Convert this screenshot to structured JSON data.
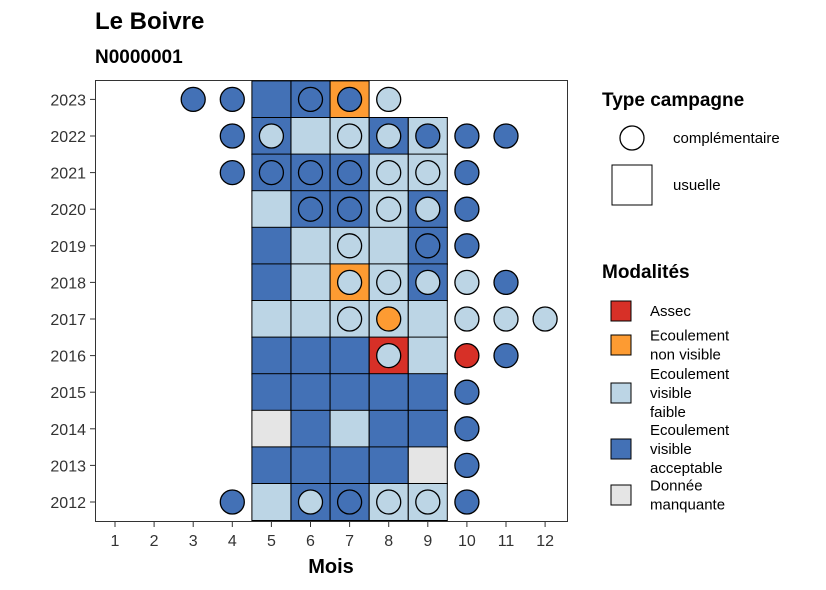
{
  "chart_data": {
    "type": "heatmap",
    "title": "Le Boivre",
    "subtitle": "N0000001",
    "xlabel": "Mois",
    "ylabel": "",
    "x_ticks": [
      "1",
      "2",
      "3",
      "4",
      "5",
      "6",
      "7",
      "8",
      "9",
      "10",
      "11",
      "12"
    ],
    "y_ticks": [
      "2012",
      "2013",
      "2014",
      "2015",
      "2016",
      "2017",
      "2018",
      "2019",
      "2020",
      "2021",
      "2022",
      "2023"
    ],
    "grid": false,
    "legend_position": "right",
    "modalites": [
      {
        "key": "A",
        "label_lines": [
          "Assec"
        ],
        "color": "#d73027"
      },
      {
        "key": "N",
        "label_lines": [
          "Ecoulement",
          "non visible"
        ],
        "color": "#fd9b32"
      },
      {
        "key": "F",
        "label_lines": [
          "Ecoulement",
          "visible",
          "faible"
        ],
        "color": "#bcd5e5"
      },
      {
        "key": "V",
        "label_lines": [
          "Ecoulement",
          "visible",
          "acceptable"
        ],
        "color": "#4371b6"
      },
      {
        "key": "M",
        "label_lines": [
          "Donnée",
          "manquante"
        ],
        "color": "#e5e5e5"
      }
    ],
    "campaign_types": {
      "title": "Type campagne",
      "items": [
        {
          "shape": "circle",
          "label": "complémentaire"
        },
        {
          "shape": "square",
          "label": "usuelle"
        }
      ]
    },
    "usuelle": [
      {
        "year": 2023,
        "month": 5,
        "value": "V"
      },
      {
        "year": 2023,
        "month": 6,
        "value": "V"
      },
      {
        "year": 2023,
        "month": 7,
        "value": "N"
      },
      {
        "year": 2022,
        "month": 5,
        "value": "V"
      },
      {
        "year": 2022,
        "month": 6,
        "value": "F"
      },
      {
        "year": 2022,
        "month": 7,
        "value": "F"
      },
      {
        "year": 2022,
        "month": 8,
        "value": "V"
      },
      {
        "year": 2022,
        "month": 9,
        "value": "F"
      },
      {
        "year": 2021,
        "month": 5,
        "value": "V"
      },
      {
        "year": 2021,
        "month": 6,
        "value": "V"
      },
      {
        "year": 2021,
        "month": 7,
        "value": "V"
      },
      {
        "year": 2021,
        "month": 8,
        "value": "F"
      },
      {
        "year": 2021,
        "month": 9,
        "value": "F"
      },
      {
        "year": 2020,
        "month": 5,
        "value": "F"
      },
      {
        "year": 2020,
        "month": 6,
        "value": "V"
      },
      {
        "year": 2020,
        "month": 7,
        "value": "V"
      },
      {
        "year": 2020,
        "month": 8,
        "value": "F"
      },
      {
        "year": 2020,
        "month": 9,
        "value": "V"
      },
      {
        "year": 2019,
        "month": 5,
        "value": "V"
      },
      {
        "year": 2019,
        "month": 6,
        "value": "F"
      },
      {
        "year": 2019,
        "month": 7,
        "value": "F"
      },
      {
        "year": 2019,
        "month": 8,
        "value": "F"
      },
      {
        "year": 2019,
        "month": 9,
        "value": "V"
      },
      {
        "year": 2018,
        "month": 5,
        "value": "V"
      },
      {
        "year": 2018,
        "month": 6,
        "value": "F"
      },
      {
        "year": 2018,
        "month": 7,
        "value": "N"
      },
      {
        "year": 2018,
        "month": 8,
        "value": "F"
      },
      {
        "year": 2018,
        "month": 9,
        "value": "V"
      },
      {
        "year": 2017,
        "month": 5,
        "value": "F"
      },
      {
        "year": 2017,
        "month": 6,
        "value": "F"
      },
      {
        "year": 2017,
        "month": 7,
        "value": "F"
      },
      {
        "year": 2017,
        "month": 8,
        "value": "F"
      },
      {
        "year": 2017,
        "month": 9,
        "value": "F"
      },
      {
        "year": 2016,
        "month": 5,
        "value": "V"
      },
      {
        "year": 2016,
        "month": 6,
        "value": "V"
      },
      {
        "year": 2016,
        "month": 7,
        "value": "V"
      },
      {
        "year": 2016,
        "month": 8,
        "value": "A"
      },
      {
        "year": 2016,
        "month": 9,
        "value": "F"
      },
      {
        "year": 2015,
        "month": 5,
        "value": "V"
      },
      {
        "year": 2015,
        "month": 6,
        "value": "V"
      },
      {
        "year": 2015,
        "month": 7,
        "value": "V"
      },
      {
        "year": 2015,
        "month": 8,
        "value": "V"
      },
      {
        "year": 2015,
        "month": 9,
        "value": "V"
      },
      {
        "year": 2014,
        "month": 5,
        "value": "M"
      },
      {
        "year": 2014,
        "month": 6,
        "value": "V"
      },
      {
        "year": 2014,
        "month": 7,
        "value": "F"
      },
      {
        "year": 2014,
        "month": 8,
        "value": "V"
      },
      {
        "year": 2014,
        "month": 9,
        "value": "V"
      },
      {
        "year": 2013,
        "month": 5,
        "value": "V"
      },
      {
        "year": 2013,
        "month": 6,
        "value": "V"
      },
      {
        "year": 2013,
        "month": 7,
        "value": "V"
      },
      {
        "year": 2013,
        "month": 8,
        "value": "V"
      },
      {
        "year": 2013,
        "month": 9,
        "value": "M"
      },
      {
        "year": 2012,
        "month": 5,
        "value": "F"
      },
      {
        "year": 2012,
        "month": 6,
        "value": "V"
      },
      {
        "year": 2012,
        "month": 7,
        "value": "V"
      },
      {
        "year": 2012,
        "month": 8,
        "value": "F"
      },
      {
        "year": 2012,
        "month": 9,
        "value": "F"
      }
    ],
    "complementaire": [
      {
        "year": 2023,
        "month": 3,
        "value": "V"
      },
      {
        "year": 2023,
        "month": 4,
        "value": "V"
      },
      {
        "year": 2023,
        "month": 6,
        "value": "V"
      },
      {
        "year": 2023,
        "month": 7,
        "value": "V"
      },
      {
        "year": 2023,
        "month": 8,
        "value": "F"
      },
      {
        "year": 2022,
        "month": 4,
        "value": "V"
      },
      {
        "year": 2022,
        "month": 5,
        "value": "F"
      },
      {
        "year": 2022,
        "month": 7,
        "value": "F"
      },
      {
        "year": 2022,
        "month": 8,
        "value": "F"
      },
      {
        "year": 2022,
        "month": 9,
        "value": "V"
      },
      {
        "year": 2022,
        "month": 10,
        "value": "V"
      },
      {
        "year": 2022,
        "month": 11,
        "value": "V"
      },
      {
        "year": 2021,
        "month": 4,
        "value": "V"
      },
      {
        "year": 2021,
        "month": 5,
        "value": "V"
      },
      {
        "year": 2021,
        "month": 6,
        "value": "V"
      },
      {
        "year": 2021,
        "month": 7,
        "value": "V"
      },
      {
        "year": 2021,
        "month": 8,
        "value": "F"
      },
      {
        "year": 2021,
        "month": 9,
        "value": "F"
      },
      {
        "year": 2021,
        "month": 10,
        "value": "V"
      },
      {
        "year": 2020,
        "month": 6,
        "value": "V"
      },
      {
        "year": 2020,
        "month": 7,
        "value": "V"
      },
      {
        "year": 2020,
        "month": 8,
        "value": "F"
      },
      {
        "year": 2020,
        "month": 9,
        "value": "F"
      },
      {
        "year": 2020,
        "month": 10,
        "value": "V"
      },
      {
        "year": 2019,
        "month": 7,
        "value": "F"
      },
      {
        "year": 2019,
        "month": 9,
        "value": "V"
      },
      {
        "year": 2019,
        "month": 10,
        "value": "V"
      },
      {
        "year": 2018,
        "month": 7,
        "value": "F"
      },
      {
        "year": 2018,
        "month": 8,
        "value": "F"
      },
      {
        "year": 2018,
        "month": 9,
        "value": "F"
      },
      {
        "year": 2018,
        "month": 10,
        "value": "F"
      },
      {
        "year": 2018,
        "month": 11,
        "value": "V"
      },
      {
        "year": 2017,
        "month": 7,
        "value": "F"
      },
      {
        "year": 2017,
        "month": 8,
        "value": "N"
      },
      {
        "year": 2017,
        "month": 10,
        "value": "F"
      },
      {
        "year": 2017,
        "month": 11,
        "value": "F"
      },
      {
        "year": 2017,
        "month": 12,
        "value": "F"
      },
      {
        "year": 2016,
        "month": 8,
        "value": "F"
      },
      {
        "year": 2016,
        "month": 10,
        "value": "A"
      },
      {
        "year": 2016,
        "month": 11,
        "value": "V"
      },
      {
        "year": 2015,
        "month": 10,
        "value": "V"
      },
      {
        "year": 2014,
        "month": 10,
        "value": "V"
      },
      {
        "year": 2013,
        "month": 10,
        "value": "V"
      },
      {
        "year": 2012,
        "month": 4,
        "value": "V"
      },
      {
        "year": 2012,
        "month": 6,
        "value": "F"
      },
      {
        "year": 2012,
        "month": 7,
        "value": "V"
      },
      {
        "year": 2012,
        "month": 8,
        "value": "F"
      },
      {
        "year": 2012,
        "month": 9,
        "value": "F"
      },
      {
        "year": 2012,
        "month": 10,
        "value": "V"
      }
    ]
  }
}
